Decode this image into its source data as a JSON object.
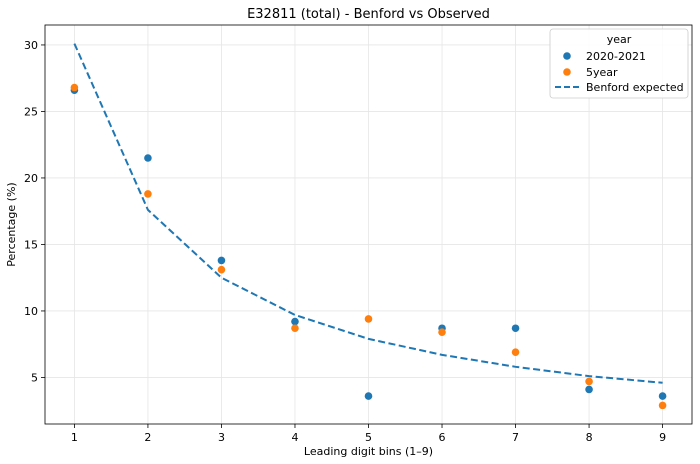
{
  "chart_data": {
    "type": "scatter",
    "title": "E32811 (total) - Benford vs Observed",
    "xlabel": "Leading digit bins (1–9)",
    "ylabel": "Percentage (%)",
    "x": [
      1,
      2,
      3,
      4,
      5,
      6,
      7,
      8,
      9
    ],
    "xlim": [
      0.6,
      9.4
    ],
    "ylim": [
      1.5,
      31.5
    ],
    "x_ticks": [
      "1",
      "2",
      "3",
      "4",
      "5",
      "6",
      "7",
      "8",
      "9"
    ],
    "y_ticks": [
      "5",
      "10",
      "15",
      "20",
      "25",
      "30"
    ],
    "grid": true,
    "legend": {
      "title": "year",
      "position": "top-right"
    },
    "series": [
      {
        "name": "2020-2021",
        "kind": "scatter",
        "color": "#1f77b4",
        "values": [
          26.6,
          21.5,
          13.8,
          9.2,
          3.6,
          8.7,
          8.7,
          4.1,
          3.6
        ]
      },
      {
        "name": "5year",
        "kind": "scatter",
        "color": "#ff7f0e",
        "values": [
          26.8,
          18.8,
          13.1,
          8.7,
          9.4,
          8.4,
          6.9,
          4.7,
          2.9
        ]
      },
      {
        "name": "Benford expected",
        "kind": "line",
        "style": "dashed",
        "color": "#1f77b4",
        "values": [
          30.1,
          17.6,
          12.5,
          9.7,
          7.9,
          6.7,
          5.8,
          5.1,
          4.6
        ]
      }
    ]
  }
}
